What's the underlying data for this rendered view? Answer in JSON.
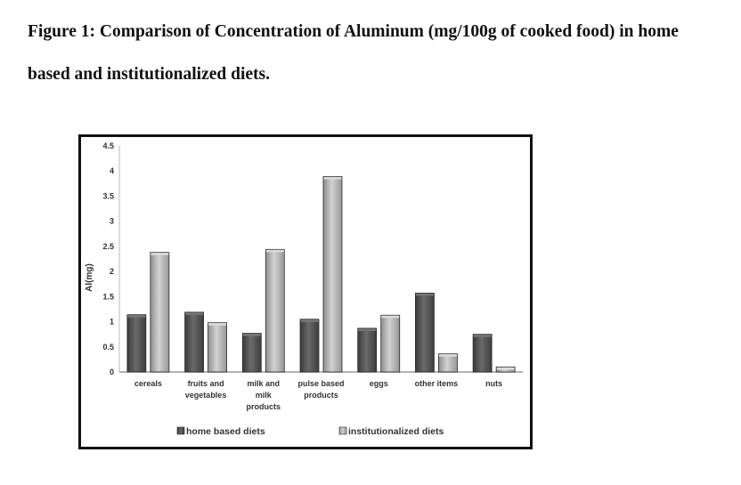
{
  "caption": {
    "line1": "Figure 1: Comparison of Concentration of Aluminum (mg/100g of cooked food) in home",
    "line2": "based and institutionalized  diets."
  },
  "chart_data": {
    "type": "bar",
    "title": "",
    "xlabel": "",
    "ylabel": "Al(mg)",
    "ylim": [
      0,
      4.5
    ],
    "yticks": [
      "0",
      "0.5",
      "1",
      "1.5",
      "2",
      "2.5",
      "3",
      "3.5",
      "4",
      "4.5"
    ],
    "categories": [
      [
        "cereals"
      ],
      [
        "fruits and",
        "vegetables"
      ],
      [
        "milk and",
        "milk",
        "products"
      ],
      [
        "pulse based",
        "products"
      ],
      [
        "eggs"
      ],
      [
        "other items"
      ],
      [
        "nuts"
      ]
    ],
    "series": [
      {
        "name": "home based diets",
        "color": "#555555",
        "values": [
          1.14,
          1.19,
          0.77,
          1.05,
          0.87,
          1.57,
          0.75
        ]
      },
      {
        "name": "institutionalized diets",
        "color": "#b3b3b3",
        "values": [
          2.38,
          0.98,
          2.44,
          3.89,
          1.13,
          0.36,
          0.1
        ]
      }
    ],
    "grid": false,
    "legend_position": "bottom"
  }
}
